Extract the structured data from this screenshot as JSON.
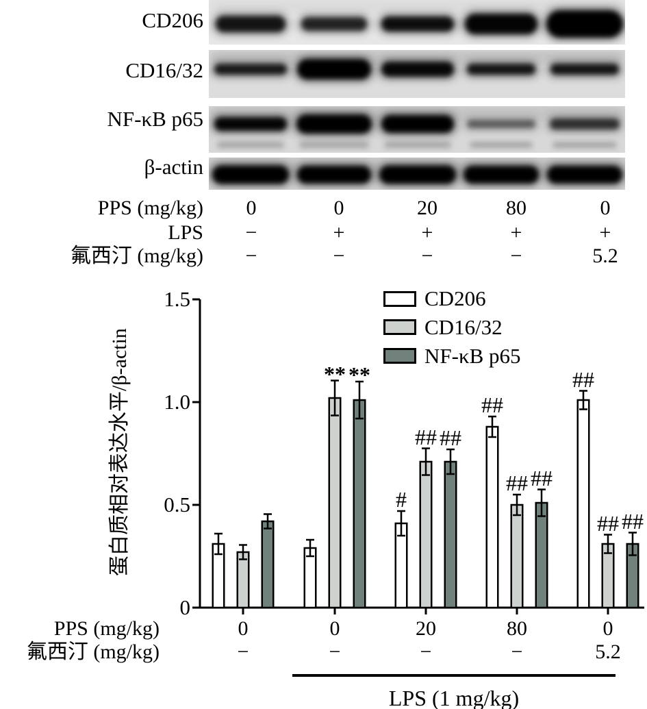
{
  "blot_panel": {
    "strips": [
      {
        "label": "CD206",
        "bg": "#e7e7e7",
        "band_center": 35,
        "heights": [
          24,
          20,
          22,
          30,
          40
        ],
        "widths": [
          102,
          96,
          106,
          106,
          112
        ],
        "intensities": [
          0.88,
          0.8,
          0.92,
          0.97,
          1.0
        ],
        "smear": 0.12,
        "secondary": false
      },
      {
        "label": "CD16/32",
        "bg": "#dddddd",
        "band_center": 28,
        "heights": [
          16,
          30,
          22,
          16,
          16
        ],
        "widths": [
          106,
          108,
          106,
          100,
          100
        ],
        "intensities": [
          0.85,
          1.0,
          0.95,
          0.88,
          0.88
        ],
        "smear": 0.28,
        "secondary": false
      },
      {
        "label": "NF-κB p65",
        "bg": "#d8d8d8",
        "band_center": 26,
        "heights": [
          20,
          28,
          26,
          12,
          16
        ],
        "widths": [
          106,
          110,
          106,
          100,
          102
        ],
        "intensities": [
          0.97,
          1.0,
          1.0,
          0.5,
          0.72
        ],
        "smear": 0.22,
        "secondary": true
      },
      {
        "label": "β-actin",
        "bg": "#d3d3d3",
        "band_center": 25,
        "heights": [
          27,
          26,
          27,
          26,
          26
        ],
        "widths": [
          112,
          108,
          112,
          110,
          110
        ],
        "intensities": [
          1,
          1,
          1,
          1,
          1
        ],
        "smear": 0.15,
        "secondary": false
      }
    ],
    "condition_rows": [
      {
        "label": "PPS (mg/kg)",
        "values": [
          "0",
          "0",
          "20",
          "80",
          "0"
        ]
      },
      {
        "label": "LPS",
        "values": [
          "−",
          "+",
          "+",
          "+",
          "+"
        ]
      },
      {
        "label": "氟西汀 (mg/kg)",
        "values": [
          "−",
          "−",
          "−",
          "−",
          "5.2"
        ]
      }
    ]
  },
  "chart_data": {
    "type": "bar",
    "title": "",
    "ylabel": "蛋白质相对表达水平/β-actin",
    "xlabel": "",
    "ylim": [
      0,
      1.5
    ],
    "yticks": [
      0,
      0.5,
      1.0,
      1.5
    ],
    "ytick_labels": [
      "0",
      "0.5",
      "1.0",
      "1.5"
    ],
    "categories": [
      "0",
      "0",
      "20",
      "80",
      "0"
    ],
    "series": [
      {
        "name": "CD206",
        "color": "#ffffff",
        "values": [
          0.31,
          0.29,
          0.41,
          0.88,
          1.01
        ],
        "errors": [
          0.05,
          0.04,
          0.06,
          0.05,
          0.045
        ],
        "annotations": [
          "",
          "",
          "#",
          "##",
          "##"
        ]
      },
      {
        "name": "CD16/32",
        "color": "#cdd2ce",
        "values": [
          0.27,
          1.02,
          0.71,
          0.5,
          0.31
        ],
        "errors": [
          0.035,
          0.085,
          0.065,
          0.05,
          0.045
        ],
        "annotations": [
          "",
          "**",
          "##",
          "##",
          "##"
        ]
      },
      {
        "name": "NF-κB p65",
        "color": "#70807b",
        "values": [
          0.42,
          1.01,
          0.71,
          0.51,
          0.31
        ],
        "errors": [
          0.035,
          0.09,
          0.06,
          0.065,
          0.055
        ],
        "annotations": [
          "",
          "**",
          "##",
          "##",
          "##"
        ]
      }
    ],
    "x_rows": [
      {
        "label": "PPS (mg/kg)",
        "values": [
          "0",
          "0",
          "20",
          "80",
          "0"
        ]
      },
      {
        "label": "氟西汀 (mg/kg)",
        "values": [
          "−",
          "−",
          "−",
          "−",
          "5.2"
        ]
      }
    ],
    "bracket": {
      "label": "LPS (1 mg/kg)"
    },
    "legend_position": "top-right",
    "grid": false
  }
}
